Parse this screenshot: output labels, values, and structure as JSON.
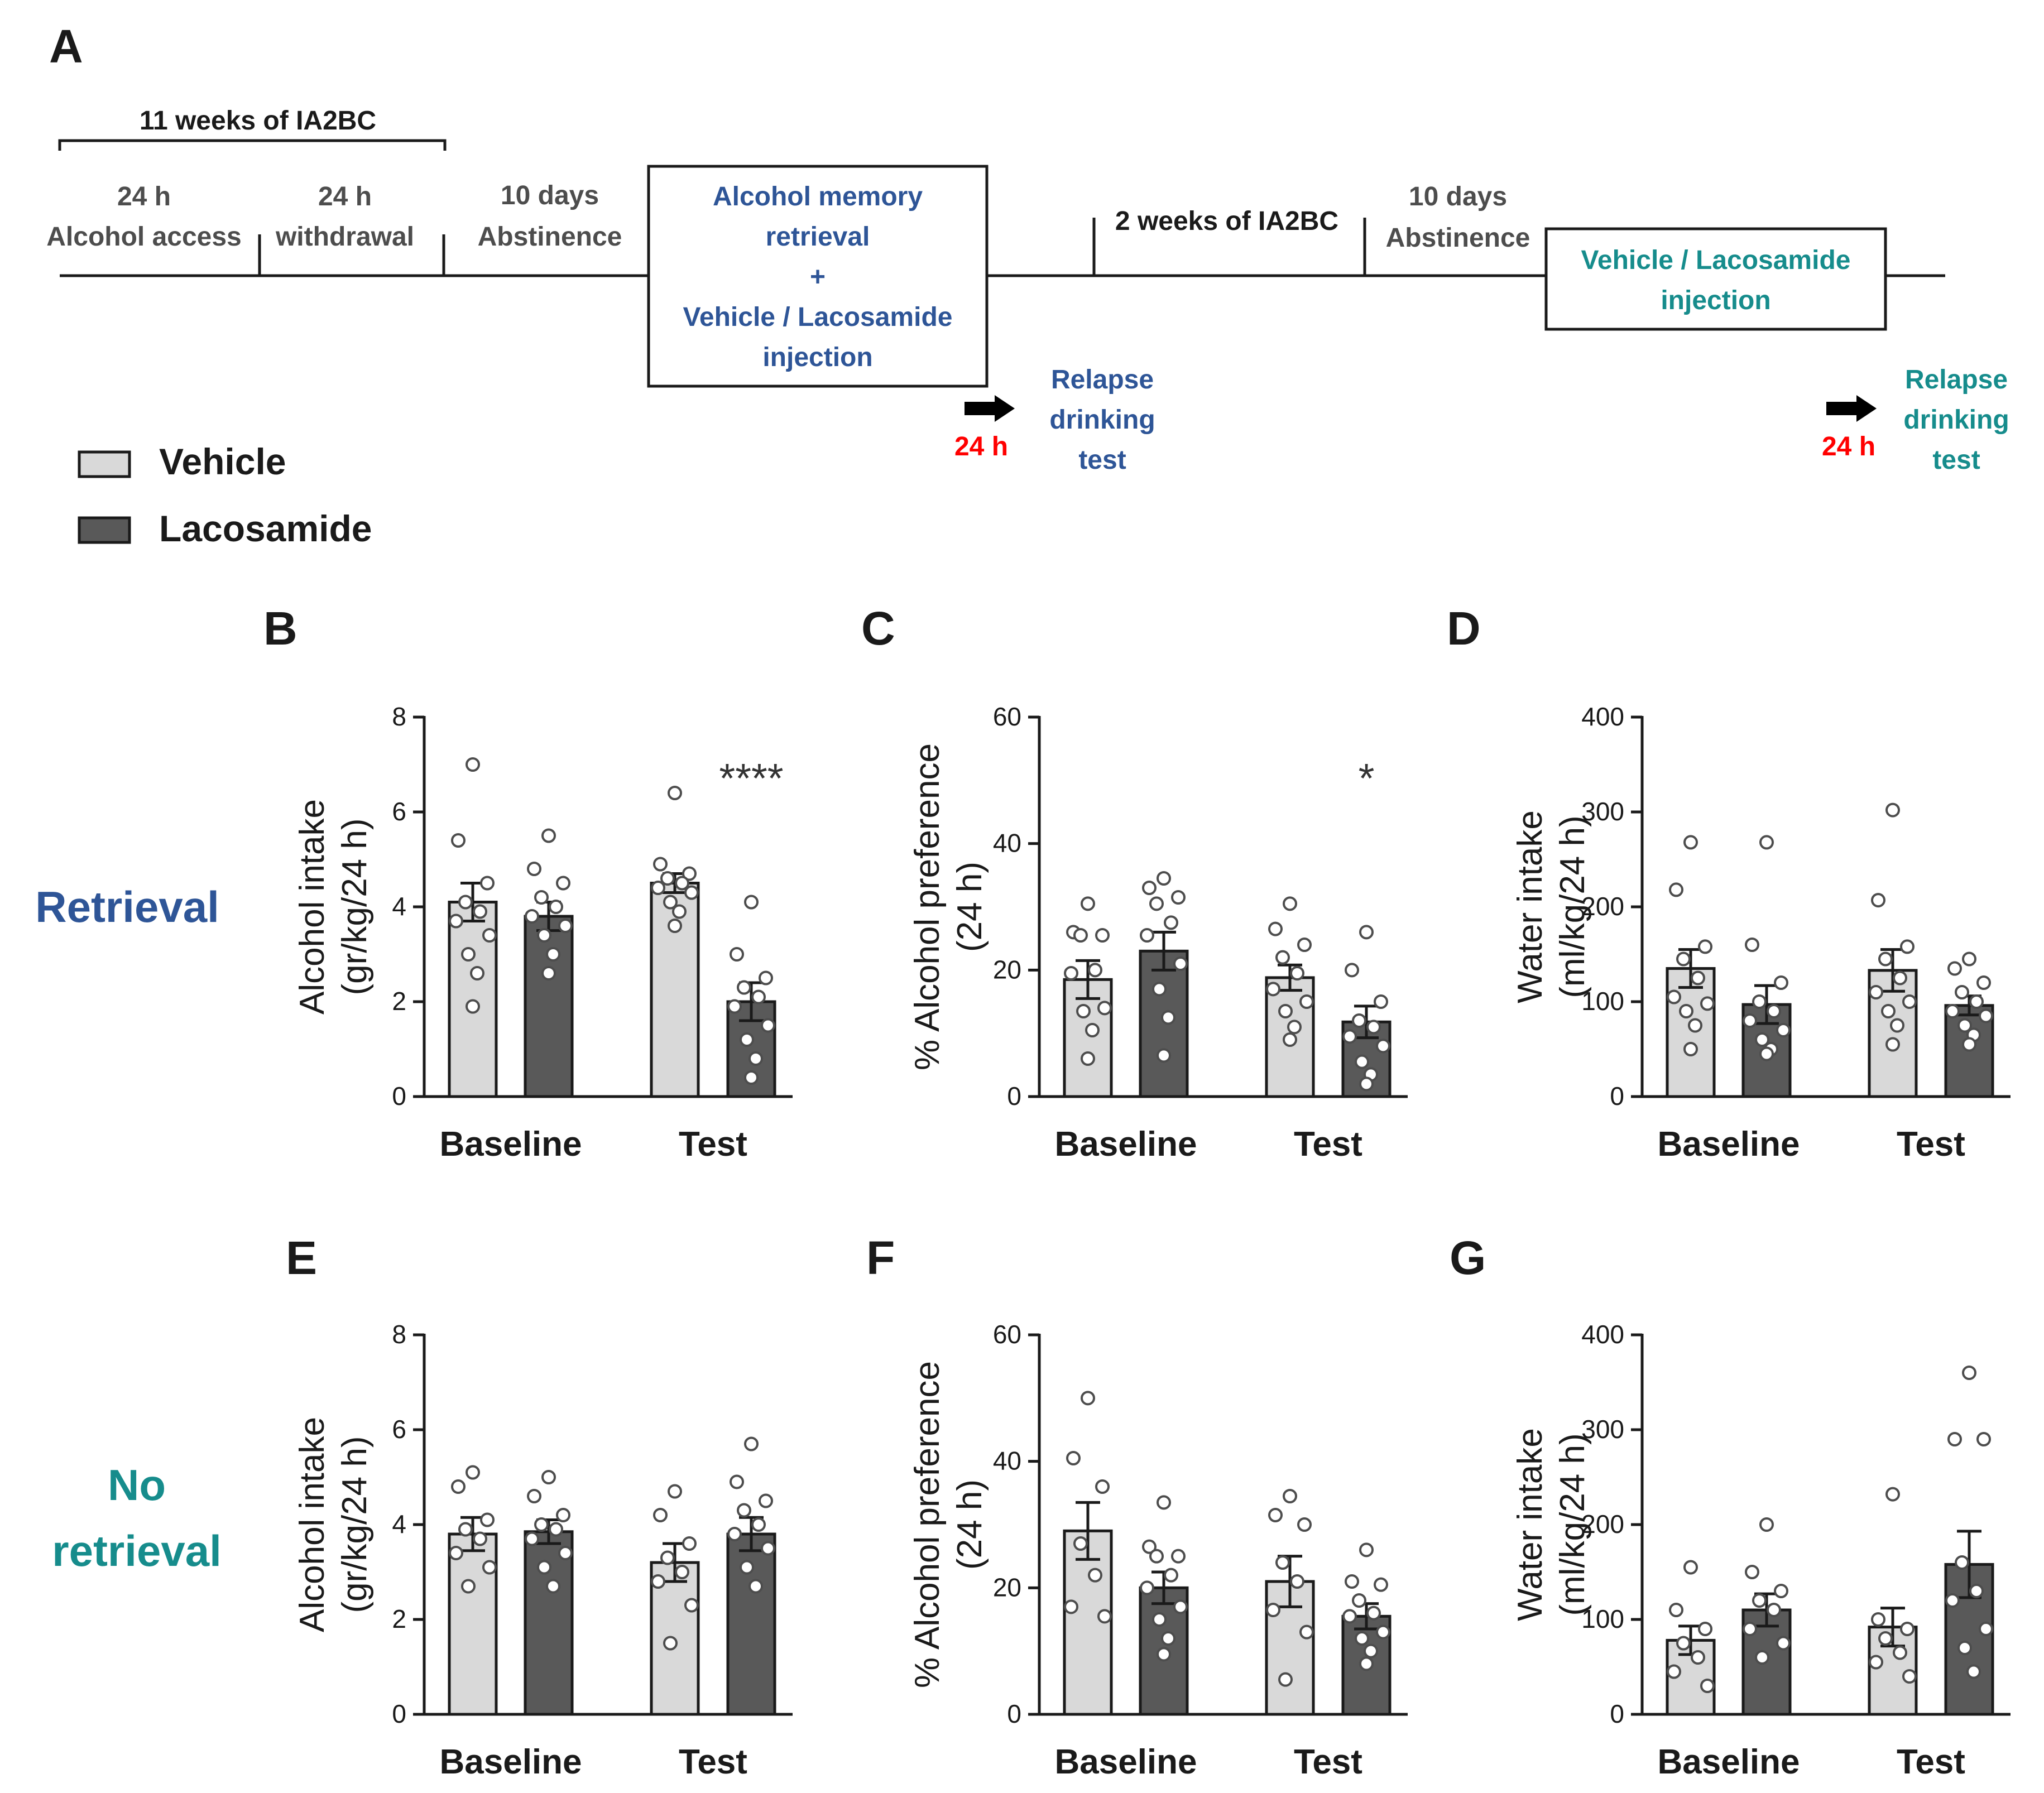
{
  "panel_labels": {
    "a": "A",
    "b": "B",
    "c": "C",
    "d": "D",
    "e": "E",
    "f": "F",
    "g": "G"
  },
  "timeline": {
    "bracket_label": "11 weeks of IA2BC",
    "seg1_line1": "24 h",
    "seg1_line2": "Alcohol access",
    "seg2_line1": "24 h",
    "seg2_line2": "withdrawal",
    "seg3_line1": "10 days",
    "seg3_line2": "Abstinence",
    "box1_lines": [
      "Alcohol memory",
      "retrieval",
      "+",
      "Vehicle / Lacosamide",
      "injection"
    ],
    "seg4_label": "2 weeks of IA2BC",
    "seg5_line1": "10 days",
    "seg5_line2": "Abstinence",
    "box2_lines": [
      "Vehicle / Lacosamide",
      "injection"
    ],
    "delay1": "24 h",
    "relapse1_lines": [
      "Relapse",
      "drinking",
      "test"
    ],
    "delay2": "24 h",
    "relapse2_lines": [
      "Relapse",
      "drinking",
      "test"
    ]
  },
  "legend": {
    "vehicle": "Vehicle",
    "lacosamide": "Lacosamide"
  },
  "row_labels": {
    "retrieval": "Retrieval",
    "no_retrieval_1": "No",
    "no_retrieval_2": "retrieval"
  },
  "colors": {
    "vehicle": "#d9d9d9",
    "lacosamide": "#595959",
    "retrieval_blue": "#2e5597",
    "no_retrieval_teal": "#168c8c",
    "delay_red": "#ff0000",
    "ink": "#1a1a1a"
  },
  "chart_data": [
    {
      "panel": "B",
      "type": "bar",
      "categories": [
        "Baseline",
        "Test"
      ],
      "ylabel_line1": "Alcohol intake",
      "ylabel_line2": "(gr/kg/24 h)",
      "ylim": [
        0,
        8
      ],
      "yticks": [
        "0",
        "2",
        "4",
        "6",
        "8"
      ],
      "series": [
        {
          "name": "Vehicle",
          "values": [
            4.1,
            4.5
          ],
          "sem": [
            0.4,
            0.2
          ],
          "points": [
            [
              7.0,
              5.4,
              4.5,
              4.1,
              3.9,
              3.7,
              3.4,
              3.0,
              2.6,
              1.9
            ],
            [
              6.4,
              4.9,
              4.7,
              4.6,
              4.5,
              4.4,
              4.3,
              4.1,
              3.9,
              3.6
            ]
          ]
        },
        {
          "name": "Lacosamide",
          "values": [
            3.8,
            2.0
          ],
          "sem": [
            0.3,
            0.4
          ],
          "points": [
            [
              5.5,
              4.8,
              4.5,
              4.2,
              4.0,
              3.8,
              3.6,
              3.4,
              3.0,
              2.6
            ],
            [
              4.1,
              3.0,
              2.5,
              2.3,
              2.1,
              1.9,
              1.5,
              1.2,
              0.8,
              0.4
            ]
          ]
        }
      ],
      "significance": [
        "",
        "****"
      ]
    },
    {
      "panel": "C",
      "type": "bar",
      "categories": [
        "Baseline",
        "Test"
      ],
      "ylabel_line1": "% Alcohol preference",
      "ylabel_line2": "(24 h)",
      "ylim": [
        0,
        60
      ],
      "yticks": [
        "0",
        "20",
        "40",
        "60"
      ],
      "series": [
        {
          "name": "Vehicle",
          "values": [
            18.5,
            18.8
          ],
          "sem": [
            3.0,
            2.0
          ],
          "points": [
            [
              30.5,
              26.0,
              25.5,
              25.5,
              20.0,
              19.5,
              14.0,
              13.5,
              10.5,
              6.0
            ],
            [
              30.5,
              26.5,
              24.0,
              22.0,
              19.5,
              17.0,
              15.0,
              13.5,
              11.0,
              9.0
            ]
          ]
        },
        {
          "name": "Lacosamide",
          "values": [
            23.0,
            11.8
          ],
          "sem": [
            3.0,
            2.5
          ],
          "points": [
            [
              34.5,
              33.0,
              31.5,
              30.5,
              27.5,
              25.5,
              21.0,
              17.0,
              12.5,
              6.5
            ],
            [
              26.0,
              20.0,
              15.0,
              12.0,
              11.0,
              9.5,
              8.0,
              5.5,
              3.5,
              2.0
            ]
          ]
        }
      ],
      "significance": [
        "",
        "*"
      ]
    },
    {
      "panel": "D",
      "type": "bar",
      "categories": [
        "Baseline",
        "Test"
      ],
      "ylabel_line1": "Water intake",
      "ylabel_line2": "(ml/kg/24 h)",
      "ylim": [
        0,
        400
      ],
      "yticks": [
        "0",
        "100",
        "200",
        "300",
        "400"
      ],
      "series": [
        {
          "name": "Vehicle",
          "values": [
            135,
            133
          ],
          "sem": [
            20,
            22
          ],
          "points": [
            [
              268,
              218,
              158,
              145,
              125,
              105,
              98,
              90,
              75,
              50
            ],
            [
              302,
              207,
              158,
              145,
              125,
              110,
              100,
              90,
              75,
              55
            ]
          ]
        },
        {
          "name": "Lacosamide",
          "values": [
            97,
            96
          ],
          "sem": [
            20,
            10
          ],
          "points": [
            [
              268,
              160,
              120,
              100,
              90,
              80,
              70,
              60,
              50,
              45
            ],
            [
              145,
              135,
              120,
              110,
              100,
              90,
              85,
              75,
              65,
              55
            ]
          ]
        }
      ],
      "significance": [
        "",
        ""
      ]
    },
    {
      "panel": "E",
      "type": "bar",
      "categories": [
        "Baseline",
        "Test"
      ],
      "ylabel_line1": "Alcohol intake",
      "ylabel_line2": "(gr/kg/24 h)",
      "ylim": [
        0,
        8
      ],
      "yticks": [
        "0",
        "2",
        "4",
        "6",
        "8"
      ],
      "series": [
        {
          "name": "Vehicle",
          "values": [
            3.8,
            3.2
          ],
          "sem": [
            0.35,
            0.4
          ],
          "points": [
            [
              5.1,
              4.8,
              4.1,
              3.9,
              3.7,
              3.4,
              3.1,
              2.7
            ],
            [
              4.7,
              4.2,
              3.6,
              3.3,
              3.0,
              2.8,
              2.3,
              1.5
            ]
          ]
        },
        {
          "name": "Lacosamide",
          "values": [
            3.85,
            3.8
          ],
          "sem": [
            0.25,
            0.35
          ],
          "points": [
            [
              5.0,
              4.6,
              4.2,
              4.0,
              3.9,
              3.7,
              3.4,
              3.1,
              2.7
            ],
            [
              5.7,
              4.9,
              4.5,
              4.3,
              4.0,
              3.8,
              3.5,
              3.1,
              2.7
            ]
          ]
        }
      ],
      "significance": [
        "",
        ""
      ]
    },
    {
      "panel": "F",
      "type": "bar",
      "categories": [
        "Baseline",
        "Test"
      ],
      "ylabel_line1": "% Alcohol preference",
      "ylabel_line2": "(24 h)",
      "ylim": [
        0,
        60
      ],
      "yticks": [
        "0",
        "20",
        "40",
        "60"
      ],
      "series": [
        {
          "name": "Vehicle",
          "values": [
            29.0,
            21.0
          ],
          "sem": [
            4.5,
            4.0
          ],
          "points": [
            [
              50.0,
              40.5,
              36.0,
              27.0,
              22.0,
              17.0,
              15.5
            ],
            [
              34.5,
              31.5,
              30.0,
              24.0,
              21.0,
              16.5,
              13.0,
              5.5
            ]
          ]
        },
        {
          "name": "Lacosamide",
          "values": [
            20.0,
            15.5
          ],
          "sem": [
            2.5,
            2.0
          ],
          "points": [
            [
              33.5,
              26.5,
              25.0,
              25.0,
              22.0,
              20.0,
              17.0,
              15.0,
              12.0,
              9.5
            ],
            [
              26.0,
              21.0,
              20.5,
              18.0,
              16.0,
              15.5,
              13.0,
              12.0,
              10.0,
              8.0
            ]
          ]
        }
      ],
      "significance": [
        "",
        ""
      ]
    },
    {
      "panel": "G",
      "type": "bar",
      "categories": [
        "Baseline",
        "Test"
      ],
      "ylabel_line1": "Water intake",
      "ylabel_line2": "(ml/kg/24 h)",
      "ylim": [
        0,
        400
      ],
      "yticks": [
        "0",
        "100",
        "200",
        "300",
        "400"
      ],
      "series": [
        {
          "name": "Vehicle",
          "values": [
            78,
            92
          ],
          "sem": [
            15,
            20
          ],
          "points": [
            [
              155,
              110,
              90,
              75,
              60,
              45,
              30
            ],
            [
              232,
              100,
              90,
              80,
              65,
              55,
              40
            ]
          ]
        },
        {
          "name": "Lacosamide",
          "values": [
            110,
            158
          ],
          "sem": [
            17,
            35
          ],
          "points": [
            [
              200,
              150,
              130,
              120,
              110,
              90,
              75,
              60
            ],
            [
              360,
              290,
              290,
              160,
              130,
              120,
              90,
              70,
              45
            ]
          ]
        }
      ],
      "significance": [
        "",
        ""
      ]
    }
  ]
}
